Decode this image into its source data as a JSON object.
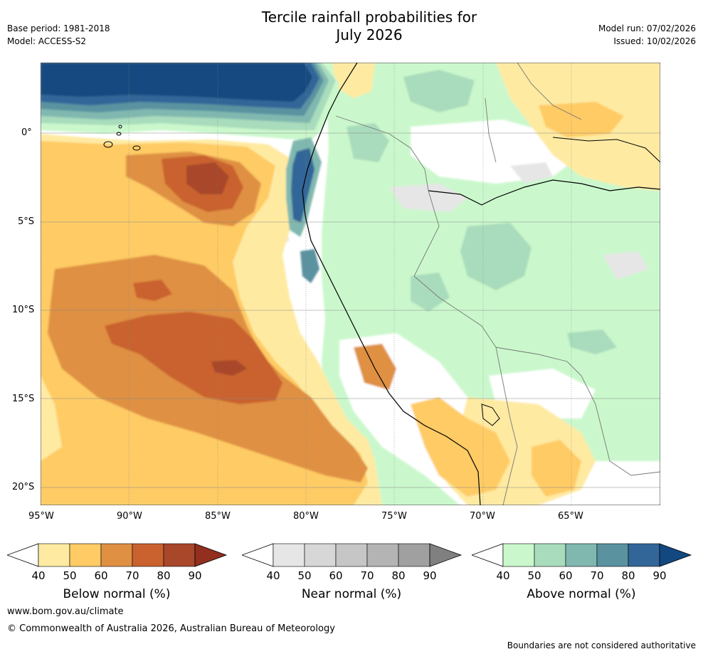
{
  "title_line1": "Tercile rainfall probabilities for",
  "title_line2": "July 2026",
  "base_period": "Base period: 1981-2018",
  "model": "Model: ACCESS-S2",
  "model_run": "Model run: 07/02/2026",
  "issued": "Issued: 10/02/2026",
  "lat_ticks": [
    "0°",
    "5°S",
    "10°S",
    "15°S",
    "20°S"
  ],
  "lon_ticks": [
    "95°W",
    "90°W",
    "85°W",
    "80°W",
    "75°W",
    "70°W",
    "65°W"
  ],
  "colorbars": [
    {
      "label": "Below normal (%)",
      "ticks": [
        "40",
        "50",
        "60",
        "70",
        "80",
        "90"
      ],
      "colors": [
        "#ffeaa2",
        "#fecb65",
        "#df9043",
        "#c9622f",
        "#a8472a",
        "#922f1f"
      ]
    },
    {
      "label": "Near normal (%)",
      "ticks": [
        "40",
        "50",
        "60",
        "70",
        "80",
        "90"
      ],
      "colors": [
        "#e6e6e6",
        "#d7d7d7",
        "#c6c6c6",
        "#b4b4b4",
        "#a0a0a0",
        "#808080"
      ]
    },
    {
      "label": "Above normal (%)",
      "ticks": [
        "40",
        "50",
        "60",
        "70",
        "80",
        "90"
      ],
      "colors": [
        "#caf8cc",
        "#a9dcbc",
        "#80b8b0",
        "#5a92a0",
        "#336698",
        "#12487f"
      ]
    }
  ],
  "website": "www.bom.gov.au/climate",
  "copyright": "© Commonwealth of Australia 2026, Australian Bureau of Meteorology",
  "disclaimer": "Boundaries are not considered authoritative"
}
